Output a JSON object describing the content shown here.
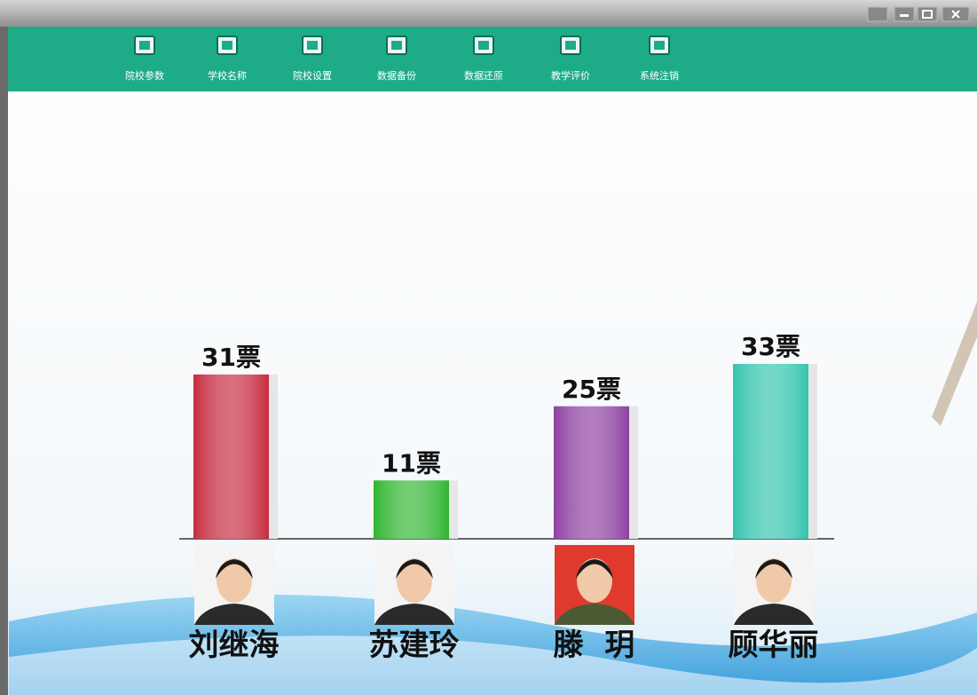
{
  "toolbar": {
    "items": [
      "院校参数",
      "学校名称",
      "院校设置",
      "数据备份",
      "数据还原",
      "教学评价",
      "系统注销"
    ]
  },
  "chart_data": {
    "type": "bar",
    "categories": [
      "刘继海",
      "苏建玲",
      "滕  玥",
      "顾华丽"
    ],
    "values": [
      31,
      11,
      25,
      33
    ],
    "value_labels": [
      "31票",
      "11票",
      "25票",
      "33票"
    ],
    "colors": [
      "#c62a3e",
      "#2fb52f",
      "#8e3fa2",
      "#33c4ae"
    ]
  }
}
